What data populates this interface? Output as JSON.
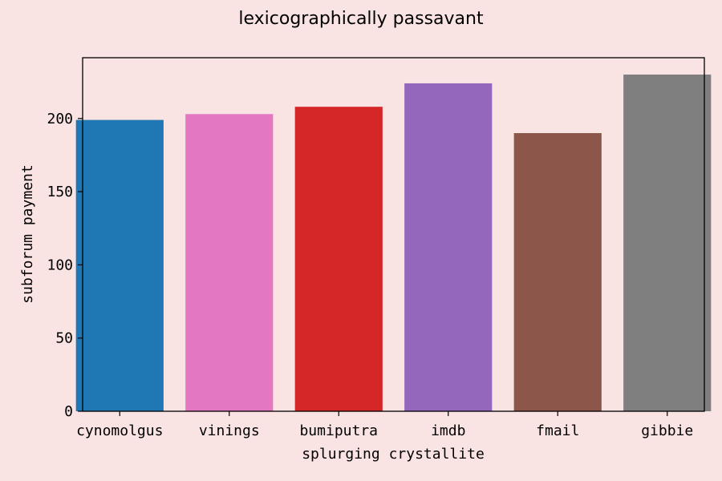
{
  "chart_data": {
    "type": "bar",
    "title": "lexicographically passavant",
    "xlabel": "splurging crystallite",
    "ylabel": "subforum payment",
    "categories": [
      "cynomolgus",
      "vinings",
      "bumiputra",
      "imdb",
      "fmail",
      "gibbie"
    ],
    "values": [
      199,
      203,
      208,
      224,
      190,
      230
    ],
    "colors": [
      "#1f77b4",
      "#e377c2",
      "#d62728",
      "#9467bd",
      "#8c564b",
      "#7f7f7f"
    ],
    "ylim": [
      0,
      241.5
    ],
    "yticks": [
      0,
      50,
      100,
      150,
      200
    ],
    "grid": false,
    "legend": "none"
  }
}
